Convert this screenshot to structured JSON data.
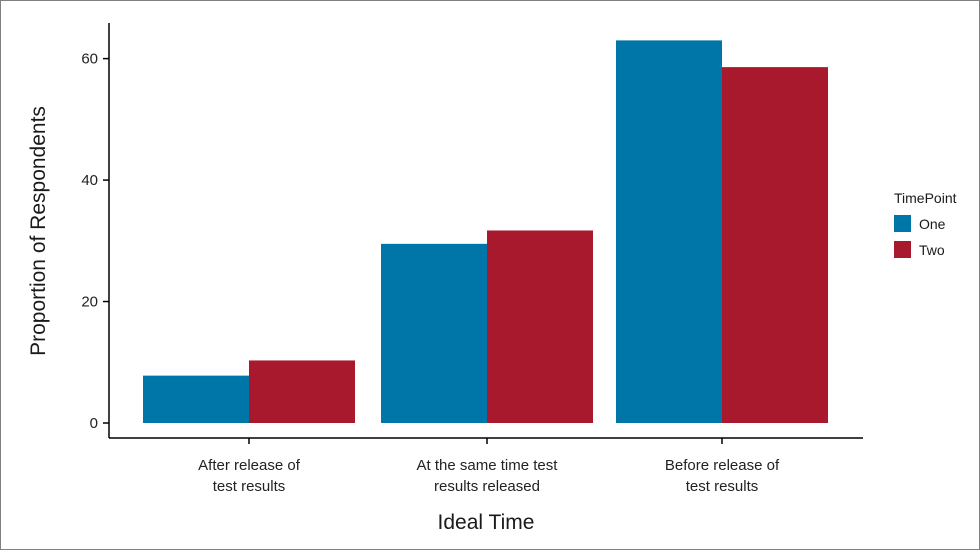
{
  "chart_data": {
    "type": "bar",
    "title": "",
    "xlabel": "Ideal Time",
    "ylabel": "Proportion of Respondents",
    "categories": [
      [
        "After release of",
        "test results"
      ],
      [
        "At the same time test",
        "results released"
      ],
      [
        "Before release of",
        "test results"
      ]
    ],
    "series": [
      {
        "name": "One",
        "color": "#0076a8",
        "values": [
          7.8,
          29.5,
          63.0
        ]
      },
      {
        "name": "Two",
        "color": "#a8192e",
        "values": [
          10.3,
          31.7,
          58.6
        ]
      }
    ],
    "ylim": [
      0,
      66
    ],
    "yticks": [
      0,
      20,
      40,
      60
    ],
    "grid": false,
    "legend": {
      "title": "TimePoint",
      "position": "right"
    }
  }
}
